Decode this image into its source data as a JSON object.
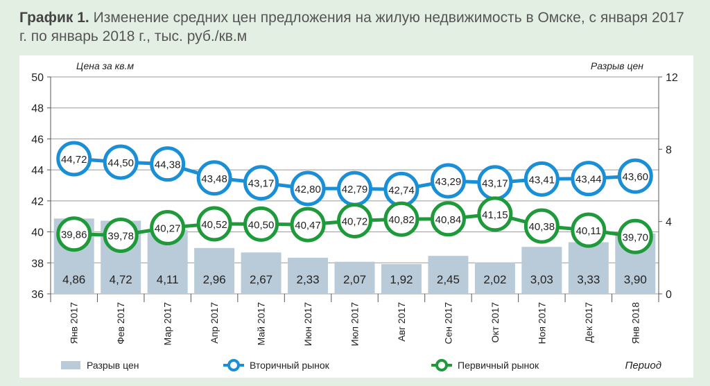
{
  "title_bold": "График 1.",
  "title_rest": "Изменение средних цен предложения на жилую недвижимость в Омске, с января 2017 г. по январь 2018 г., тыс. руб./кв.м",
  "chart_data": {
    "type": "bar+line",
    "categories": [
      "Янв 2017",
      "Фев 2017",
      "Мар 2017",
      "Апр 2017",
      "Май 2017",
      "Июн 2017",
      "Июл 2017",
      "Авг 2017",
      "Сен 2017",
      "Окт 2017",
      "Ноя 2017",
      "Дек 2017",
      "Янв 2018"
    ],
    "series": [
      {
        "name": "Разрыв цен",
        "type": "bar",
        "axis": "right",
        "color": "#b9cbd8",
        "values": [
          4.86,
          4.72,
          4.11,
          2.96,
          2.67,
          2.33,
          2.07,
          1.92,
          2.45,
          2.02,
          3.03,
          3.33,
          3.9
        ],
        "labels": [
          "4,86",
          "4,72",
          "4,11",
          "2,96",
          "2,67",
          "2,33",
          "2,07",
          "1,92",
          "2,45",
          "2,02",
          "3,03",
          "3,33",
          "3,90"
        ]
      },
      {
        "name": "Вторичный рынок",
        "type": "line",
        "axis": "left",
        "color": "#1a8fd6",
        "values": [
          44.72,
          44.5,
          44.38,
          43.48,
          43.17,
          42.8,
          42.79,
          42.74,
          43.29,
          43.17,
          43.41,
          43.44,
          43.6
        ],
        "labels": [
          "44,72",
          "44,50",
          "44,38",
          "43,48",
          "43,17",
          "42,80",
          "42,79",
          "42,74",
          "43,29",
          "43,17",
          "43,41",
          "43,44",
          "43,60"
        ]
      },
      {
        "name": "Первичный рынок",
        "type": "line",
        "axis": "left",
        "color": "#1f9a3a",
        "values": [
          39.86,
          39.78,
          40.27,
          40.52,
          40.5,
          40.47,
          40.72,
          40.82,
          40.84,
          41.15,
          40.38,
          40.11,
          39.7
        ],
        "labels": [
          "39,86",
          "39,78",
          "40,27",
          "40,52",
          "40,50",
          "40,47",
          "40,72",
          "40,82",
          "40,84",
          "41,15",
          "40,38",
          "40,11",
          "39,70"
        ]
      }
    ],
    "ylabel": "Цена за кв.м",
    "y2label": "Разрыв цен",
    "xlabel": "Период",
    "ylim": [
      36,
      50
    ],
    "yticks": [
      "36",
      "38",
      "40",
      "42",
      "44",
      "46",
      "48",
      "50"
    ],
    "y2lim": [
      0,
      12
    ],
    "y2ticks": [
      "0",
      "4",
      "8",
      "12"
    ],
    "grid": true,
    "legend": "bottom"
  }
}
